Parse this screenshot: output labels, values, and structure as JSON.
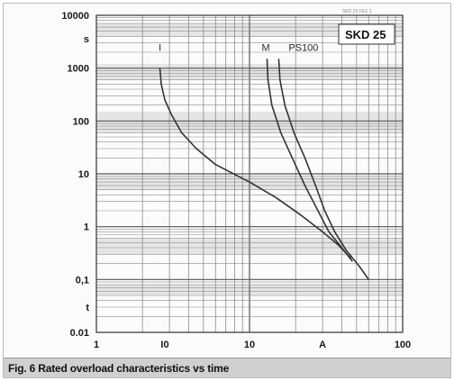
{
  "chart_data": {
    "type": "line",
    "part_label": "SKD 25",
    "code_text": "SKD 25 FEX 1",
    "caption": "Fig. 6 Rated overload characteristics vs time",
    "x_scale": "log",
    "y_scale": "log",
    "xlim": [
      1,
      100
    ],
    "ylim": [
      0.01,
      10000
    ],
    "x_tick_labels": [
      {
        "x": 1,
        "label": "1"
      },
      {
        "x": 2.8,
        "label": "I0"
      },
      {
        "x": 10,
        "label": "10"
      },
      {
        "x": 100,
        "label": "100"
      }
    ],
    "x_unit_label": {
      "x": 30,
      "label": "A"
    },
    "y_tick_labels": [
      {
        "y": 10000,
        "label": "10000"
      },
      {
        "y": 3600,
        "label": "s"
      },
      {
        "y": 1000,
        "label": "1000"
      },
      {
        "y": 100,
        "label": "100"
      },
      {
        "y": 10,
        "label": "10"
      },
      {
        "y": 1,
        "label": "1"
      },
      {
        "y": 0.1,
        "label": "0,1"
      },
      {
        "y": 0.03,
        "label": "t"
      },
      {
        "y": 0.01,
        "label": "0.01"
      }
    ],
    "series": [
      {
        "name": "I",
        "label_at": {
          "x": 2.55,
          "y": 2500
        },
        "points": [
          {
            "x": 2.6,
            "y": 1000
          },
          {
            "x": 2.65,
            "y": 500
          },
          {
            "x": 2.8,
            "y": 250
          },
          {
            "x": 3.1,
            "y": 130
          },
          {
            "x": 3.6,
            "y": 60
          },
          {
            "x": 4.5,
            "y": 30
          },
          {
            "x": 6,
            "y": 15
          },
          {
            "x": 10,
            "y": 7
          },
          {
            "x": 15,
            "y": 3.5
          },
          {
            "x": 22,
            "y": 1.6
          },
          {
            "x": 30,
            "y": 0.8
          },
          {
            "x": 38,
            "y": 0.45
          },
          {
            "x": 46,
            "y": 0.25
          }
        ]
      },
      {
        "name": "M",
        "label_at": {
          "x": 12,
          "y": 2500
        },
        "points": [
          {
            "x": 13,
            "y": 1500
          },
          {
            "x": 13.2,
            "y": 600
          },
          {
            "x": 14,
            "y": 200
          },
          {
            "x": 16,
            "y": 60
          },
          {
            "x": 19,
            "y": 20
          },
          {
            "x": 23,
            "y": 6
          },
          {
            "x": 28,
            "y": 2
          },
          {
            "x": 33,
            "y": 0.8
          },
          {
            "x": 40,
            "y": 0.4
          },
          {
            "x": 47,
            "y": 0.22
          }
        ]
      },
      {
        "name": "PS100",
        "label_at": {
          "x": 18,
          "y": 2500
        },
        "points": [
          {
            "x": 15.5,
            "y": 1500
          },
          {
            "x": 15.8,
            "y": 600
          },
          {
            "x": 17,
            "y": 200
          },
          {
            "x": 19.5,
            "y": 60
          },
          {
            "x": 23,
            "y": 20
          },
          {
            "x": 27,
            "y": 6
          },
          {
            "x": 31,
            "y": 2
          },
          {
            "x": 36,
            "y": 0.8
          },
          {
            "x": 43,
            "y": 0.35
          },
          {
            "x": 52,
            "y": 0.18
          },
          {
            "x": 60,
            "y": 0.1
          }
        ]
      }
    ],
    "colors": {
      "background": "#fbfbfb",
      "grid": "#555555",
      "grid_minor": "#8c8c8c",
      "band": "#d4d4d4",
      "curve": "#333333",
      "caption_bg": "#d0d0d0"
    }
  }
}
